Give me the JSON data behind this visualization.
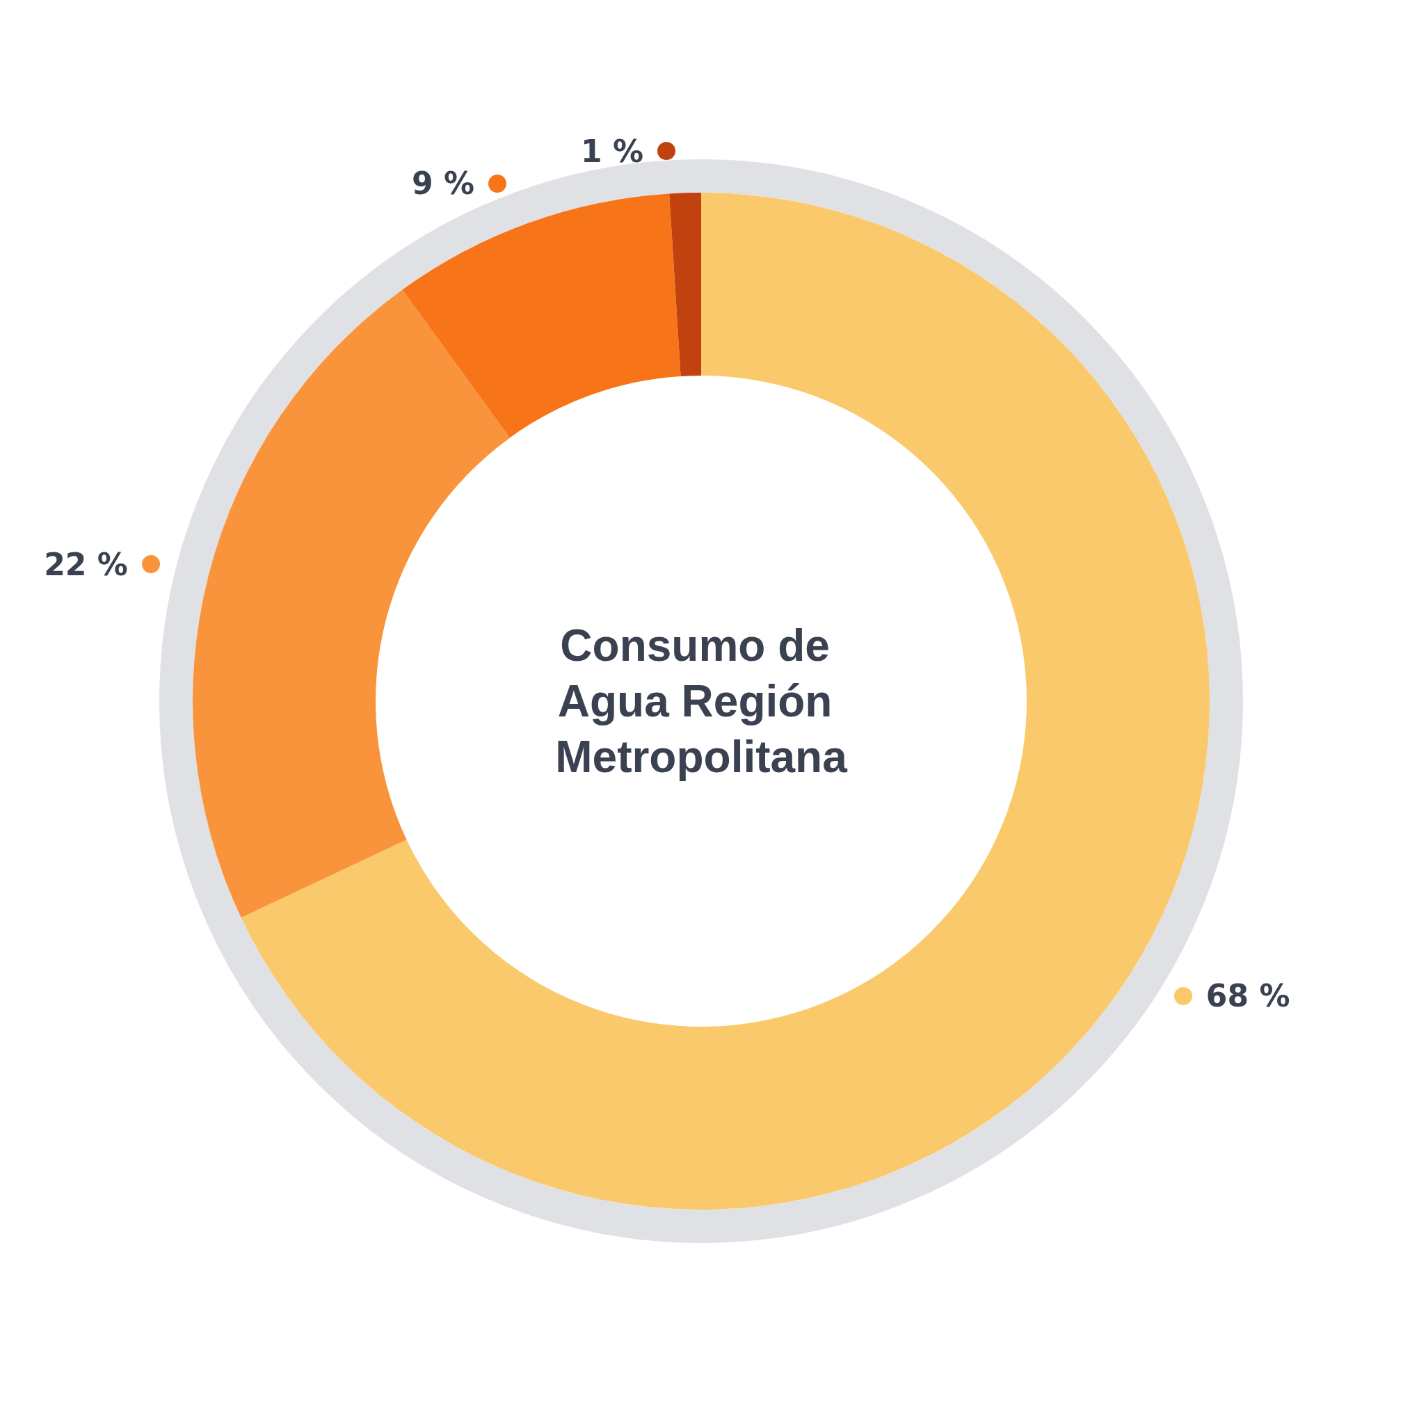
{
  "chart_data": {
    "type": "donut",
    "title": "Consumo de Agua Región Metropolitana",
    "categories": [
      null,
      null,
      null,
      null
    ],
    "values": [
      68,
      22,
      9,
      1
    ],
    "colors": [
      "#f9c96b",
      "#f9943c",
      "#f77418",
      "#c1410f"
    ],
    "value_labels": [
      "68 %",
      "22 %",
      "9 %",
      "1 %"
    ]
  }
}
